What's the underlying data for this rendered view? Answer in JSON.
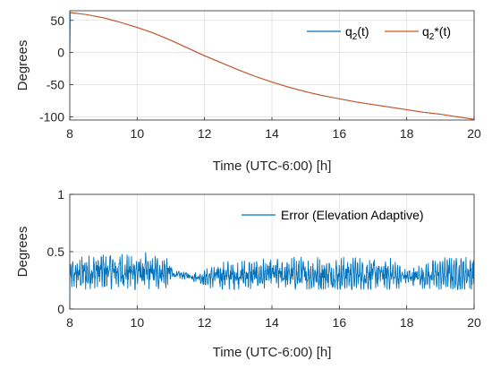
{
  "colors": {
    "q2": "#0072BD",
    "q2star": "#D95319",
    "error": "#0072BD",
    "grid": "#DFDFDF",
    "axis": "#262626"
  },
  "chart_data": [
    {
      "type": "line",
      "xlabel": "Time (UTC-6:00) [h]",
      "ylabel": "Degrees",
      "xlim": [
        8,
        20
      ],
      "ylim": [
        -105,
        65
      ],
      "xticks": [
        8,
        10,
        12,
        14,
        16,
        18,
        20
      ],
      "yticks": [
        50,
        0,
        -50,
        -100
      ],
      "grid": true,
      "legend_position": "top-right",
      "series": [
        {
          "name": "q2(t)",
          "legend_main": "q",
          "legend_sub": "2",
          "legend_tail": "(t)",
          "color": "#0072BD",
          "x": [
            8,
            8.01,
            8.05,
            8.5,
            9,
            9.5,
            10,
            10.5,
            11,
            11.5,
            12,
            12.5,
            13,
            13.5,
            14,
            14.5,
            15,
            15.5,
            16,
            16.5,
            17,
            17.5,
            18,
            18.5,
            19,
            19.5,
            20
          ],
          "values": [
            0,
            62,
            62,
            59,
            54,
            47,
            39,
            30,
            19,
            7,
            -5,
            -16,
            -27,
            -37,
            -46,
            -54,
            -61,
            -67,
            -72,
            -77,
            -81,
            -85,
            -89,
            -93,
            -96,
            -100,
            -104
          ]
        },
        {
          "name": "q2*(t)",
          "legend_main": "q",
          "legend_sub": "2",
          "legend_tail": "*(t)",
          "color": "#D95319",
          "x": [
            8,
            8.5,
            9,
            9.5,
            10,
            10.5,
            11,
            11.5,
            12,
            12.5,
            13,
            13.5,
            14,
            14.5,
            15,
            15.5,
            16,
            16.5,
            17,
            17.5,
            18,
            18.5,
            19,
            19.5,
            20
          ],
          "values": [
            62,
            59,
            54,
            47,
            39,
            30,
            19,
            7,
            -5,
            -16,
            -27,
            -37,
            -46,
            -54,
            -61,
            -67,
            -72,
            -77,
            -81,
            -85,
            -89,
            -93,
            -96,
            -100,
            -104
          ]
        }
      ]
    },
    {
      "type": "line",
      "xlabel": "Time (UTC-6:00) [h]",
      "ylabel": "Degrees",
      "xlim": [
        8,
        20
      ],
      "ylim": [
        0,
        1
      ],
      "xticks": [
        8,
        10,
        12,
        14,
        16,
        18,
        20
      ],
      "yticks": [
        0,
        0.5,
        1
      ],
      "grid": true,
      "legend_position": "top-right",
      "series": [
        {
          "name": "Error (Elevation Adaptive)",
          "color": "#0072BD",
          "noisy": true,
          "start_value": 0,
          "x_range": [
            8,
            20
          ],
          "num_points": 1200,
          "envelope_x": [
            8.0,
            8.1,
            9.0,
            10.0,
            10.9,
            11.1,
            11.5,
            12.0,
            12.5,
            14.0,
            16.0,
            17.5,
            18.0,
            18.2,
            19.0,
            20.0
          ],
          "mean": [
            0.28,
            0.3,
            0.33,
            0.32,
            0.32,
            0.3,
            0.29,
            0.27,
            0.29,
            0.3,
            0.3,
            0.3,
            0.28,
            0.28,
            0.3,
            0.31
          ],
          "amplitude": [
            0.1,
            0.12,
            0.14,
            0.14,
            0.13,
            0.03,
            0.03,
            0.06,
            0.11,
            0.12,
            0.13,
            0.12,
            0.06,
            0.08,
            0.12,
            0.13
          ],
          "peak_max": 0.55,
          "trough_min": 0.17
        }
      ]
    }
  ]
}
